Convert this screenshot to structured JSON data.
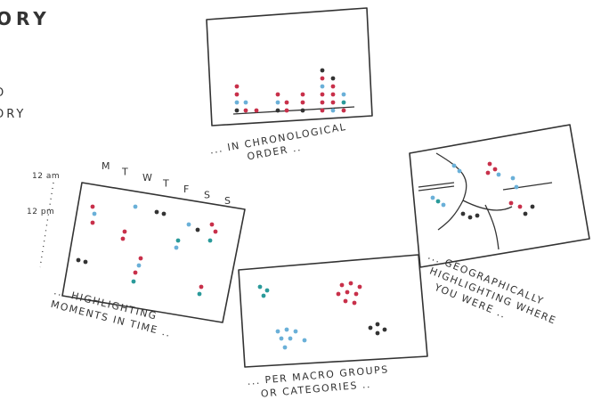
{
  "header": {
    "title_fragment": "ORY",
    "side_lines": [
      "O",
      "ORY"
    ]
  },
  "panels": [
    {
      "caption": [
        "... IN CHRONOLOGICAL",
        "ORDER .."
      ]
    },
    {
      "days": [
        "M",
        "T",
        "W",
        "T",
        "F",
        "S",
        "S"
      ],
      "times": [
        "12 am",
        "12 pm"
      ],
      "caption": [
        "... HIGHLIGHTING",
        "MOMENTS IN TIME .."
      ]
    },
    {
      "caption": [
        "... GEOGRAPHICALLY",
        "HIGHLIGHTING WHERE",
        "YOU WERE .."
      ]
    },
    {
      "caption": [
        "... PER MACRO GROUPS",
        "OR CATEGORIES .."
      ]
    }
  ]
}
